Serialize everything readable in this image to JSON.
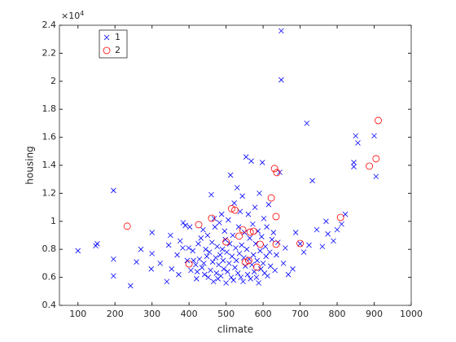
{
  "chart_data": {
    "type": "scatter",
    "xlabel": "climate",
    "ylabel": "housing",
    "y_exponent_base": "×10",
    "y_exponent": "4",
    "xlim": [
      50,
      1000
    ],
    "xticks": [
      100,
      200,
      300,
      400,
      500,
      600,
      700,
      800,
      900,
      1000
    ],
    "ylim": [
      4000,
      24000
    ],
    "yticks": [
      {
        "value": 4000,
        "label": "0.4"
      },
      {
        "value": 6000,
        "label": "0.6"
      },
      {
        "value": 8000,
        "label": "0.8"
      },
      {
        "value": 10000,
        "label": "1"
      },
      {
        "value": 12000,
        "label": "1.2"
      },
      {
        "value": 14000,
        "label": "1.4"
      },
      {
        "value": 16000,
        "label": "1.6"
      },
      {
        "value": 18000,
        "label": "1.8"
      },
      {
        "value": 20000,
        "label": "2"
      },
      {
        "value": 22000,
        "label": "2.2"
      },
      {
        "value": 24000,
        "label": "2.4"
      }
    ],
    "grid": false,
    "legend": "northwest",
    "series": [
      {
        "name": "1",
        "color": "#0000ff",
        "marker": "x",
        "x": [
          100,
          148,
          152,
          196,
          196,
          196,
          242,
          258,
          270,
          298,
          300,
          300,
          322,
          340,
          345,
          350,
          353,
          368,
          372,
          376,
          383,
          384,
          390,
          395,
          399,
          402,
          405,
          410,
          412,
          418,
          420,
          422,
          425,
          428,
          432,
          435,
          438,
          440,
          442,
          445,
          448,
          450,
          452,
          455,
          458,
          460,
          462,
          464,
          466,
          468,
          470,
          472,
          474,
          476,
          478,
          480,
          482,
          484,
          486,
          488,
          490,
          492,
          494,
          496,
          498,
          500,
          502,
          504,
          506,
          508,
          510,
          512,
          514,
          516,
          518,
          520,
          522,
          524,
          526,
          528,
          530,
          532,
          534,
          536,
          538,
          540,
          542,
          544,
          546,
          548,
          550,
          552,
          554,
          556,
          558,
          560,
          562,
          564,
          566,
          568,
          570,
          572,
          574,
          576,
          578,
          580,
          582,
          584,
          586,
          588,
          590,
          592,
          594,
          596,
          598,
          600,
          602,
          604,
          606,
          608,
          610,
          612,
          615,
          618,
          620,
          624,
          628,
          632,
          636,
          640,
          645,
          649,
          649,
          655,
          660,
          668,
          680,
          688,
          700,
          710,
          718,
          724,
          733,
          745,
          760,
          770,
          775,
          790,
          800,
          812,
          822,
          845,
          845,
          850,
          856,
          900,
          905
        ],
        "values": [
          7900,
          8250,
          8400,
          12200,
          7300,
          6100,
          5400,
          7100,
          8000,
          6600,
          7700,
          9200,
          7000,
          5700,
          8300,
          9000,
          6600,
          7600,
          6200,
          8600,
          8100,
          9900,
          9700,
          7200,
          8100,
          9600,
          6500,
          7900,
          7200,
          6900,
          5900,
          6400,
          8400,
          7300,
          8800,
          6700,
          9400,
          7000,
          6200,
          8000,
          7500,
          9000,
          6000,
          7800,
          6500,
          11900,
          8500,
          7100,
          5700,
          10200,
          9600,
          7400,
          6300,
          8200,
          5900,
          6900,
          9900,
          7600,
          6100,
          10500,
          8000,
          7200,
          6600,
          9300,
          8700,
          5600,
          7800,
          6400,
          10100,
          7000,
          8400,
          13300,
          6000,
          7500,
          9000,
          5800,
          11300,
          6700,
          8100,
          7200,
          12400,
          6300,
          9600,
          7700,
          10700,
          6000,
          8300,
          11800,
          5700,
          7400,
          9200,
          6800,
          14600,
          8000,
          6200,
          10500,
          7300,
          8800,
          5900,
          14300,
          6900,
          9800,
          7600,
          6400,
          11000,
          8400,
          6000,
          7200,
          9300,
          5600,
          12000,
          7900,
          6600,
          8900,
          14200,
          7000,
          10200,
          6300,
          8200,
          7500,
          9600,
          6100,
          11200,
          7800,
          6800,
          8700,
          9200,
          6500,
          7600,
          8500,
          13500,
          23600,
          20100,
          7000,
          8100,
          6200,
          6600,
          9200,
          8400,
          7800,
          17000,
          8300,
          12900,
          9400,
          8200,
          10000,
          9100,
          8600,
          9400,
          9800,
          10500,
          14200,
          13900,
          16100,
          15600,
          16100,
          13200
        ]
      },
      {
        "name": "2",
        "color": "#ff0000",
        "marker": "o",
        "x": [
          233,
          426,
          400,
          461,
          500,
          515,
          524,
          535,
          545,
          552,
          565,
          574,
          583,
          561,
          592,
          622,
          631,
          637,
          635,
          635,
          700,
          809,
          887,
          905,
          911
        ],
        "values": [
          9650,
          9760,
          6960,
          10220,
          8530,
          10900,
          10800,
          8940,
          9400,
          7080,
          9230,
          9290,
          6730,
          7200,
          8360,
          11670,
          13770,
          13480,
          10340,
          8360,
          8420,
          10280,
          13940,
          14470,
          17200
        ]
      }
    ]
  }
}
